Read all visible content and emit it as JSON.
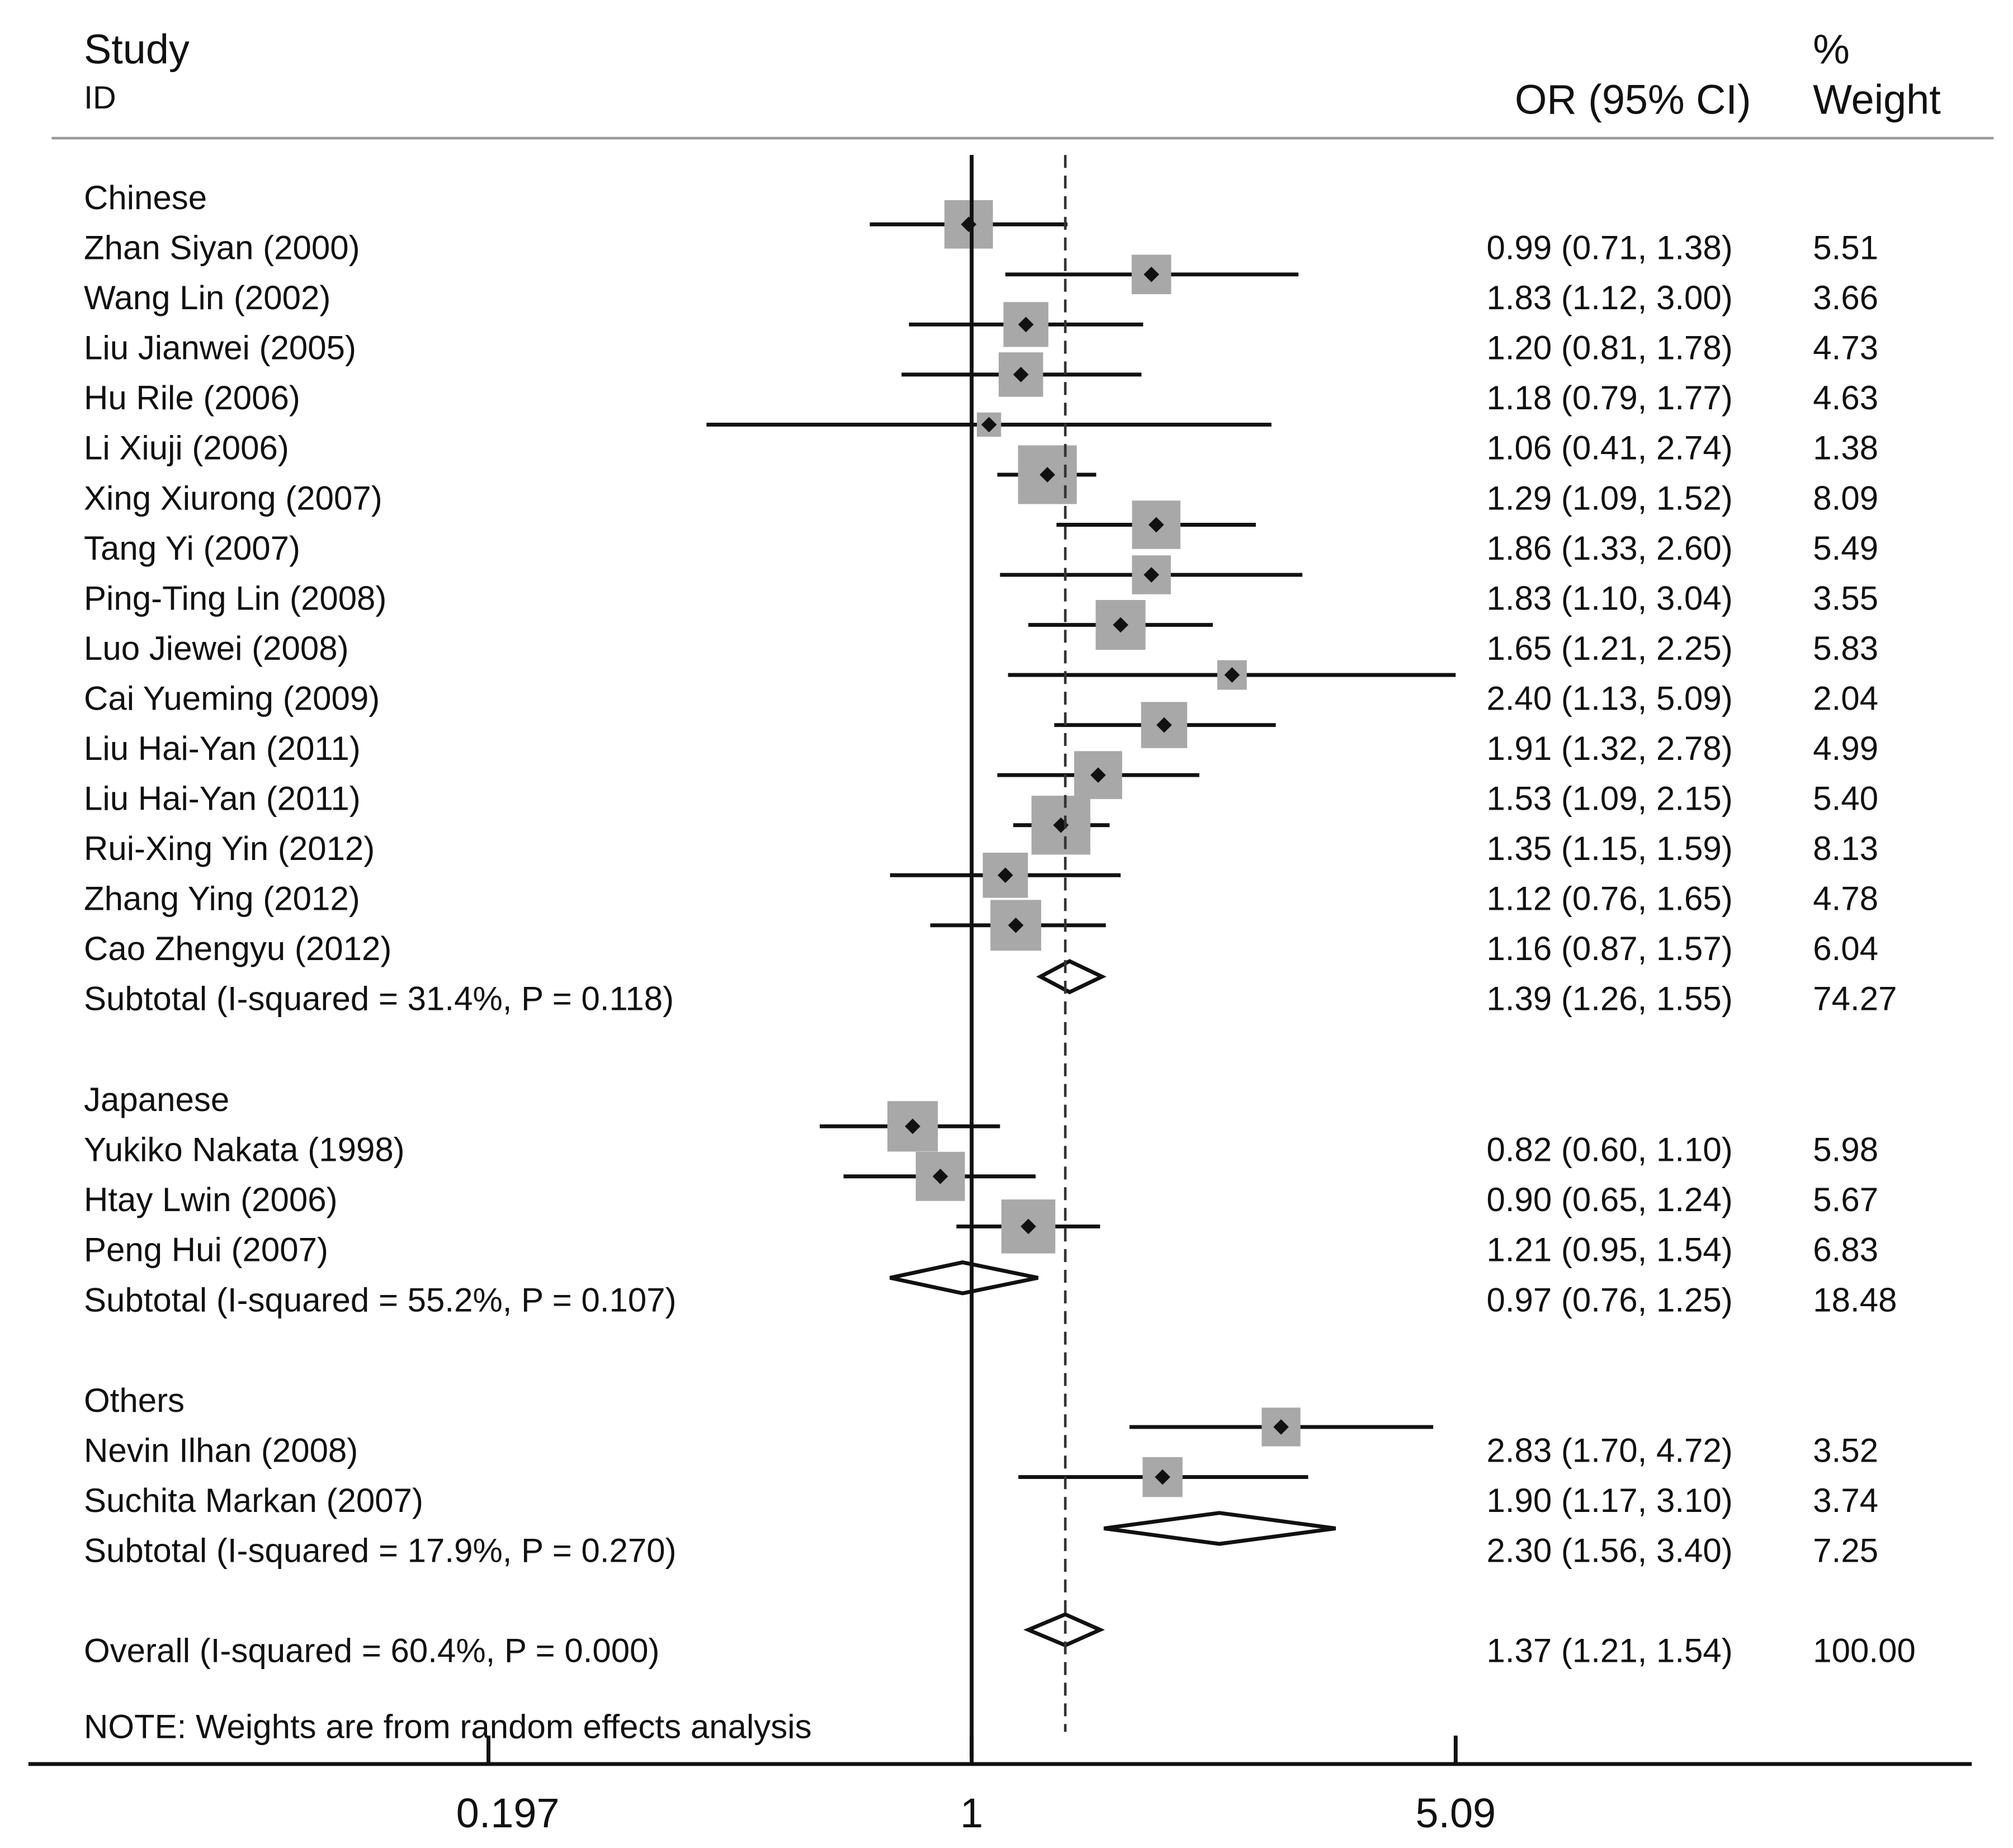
{
  "chart_data": {
    "type": "forest",
    "x_scale": "log",
    "null_value": 1,
    "overall_line_value": 1.37,
    "x_ticks": [
      0.197,
      1,
      5.09
    ],
    "x_tick_labels": [
      "0.197",
      "1",
      "5.09"
    ],
    "headers": {
      "study": "Study",
      "id": "ID",
      "or": "OR (95% CI)",
      "pct": "%",
      "weight": "Weight"
    },
    "marker_color": "#a8a8a8",
    "groups": [
      {
        "name": "Chinese",
        "studies": [
          {
            "label": "Zhan Siyan  (2000)",
            "or": 0.99,
            "lo": 0.71,
            "hi": 1.38,
            "ci_text": "0.99 (0.71, 1.38)",
            "weight": "5.51"
          },
          {
            "label": "Wang Lin (2002)",
            "or": 1.83,
            "lo": 1.12,
            "hi": 3.0,
            "ci_text": "1.83 (1.12, 3.00)",
            "weight": "3.66"
          },
          {
            "label": "Liu Jianwei (2005)",
            "or": 1.2,
            "lo": 0.81,
            "hi": 1.78,
            "ci_text": "1.20 (0.81, 1.78)",
            "weight": "4.73"
          },
          {
            "label": "Hu  Rile (2006)",
            "or": 1.18,
            "lo": 0.79,
            "hi": 1.77,
            "ci_text": "1.18 (0.79, 1.77)",
            "weight": "4.63"
          },
          {
            "label": "Li Xiuji (2006)",
            "or": 1.06,
            "lo": 0.41,
            "hi": 2.74,
            "ci_text": "1.06 (0.41, 2.74)",
            "weight": "1.38"
          },
          {
            "label": "Xing Xiurong  (2007)",
            "or": 1.29,
            "lo": 1.09,
            "hi": 1.52,
            "ci_text": "1.29 (1.09, 1.52)",
            "weight": "8.09"
          },
          {
            "label": "Tang Yi (2007)",
            "or": 1.86,
            "lo": 1.33,
            "hi": 2.6,
            "ci_text": "1.86 (1.33, 2.60)",
            "weight": "5.49"
          },
          {
            "label": "Ping-Ting Lin (2008)",
            "or": 1.83,
            "lo": 1.1,
            "hi": 3.04,
            "ci_text": "1.83 (1.10, 3.04)",
            "weight": "3.55"
          },
          {
            "label": "Luo Jiewei (2008)",
            "or": 1.65,
            "lo": 1.21,
            "hi": 2.25,
            "ci_text": "1.65 (1.21, 2.25)",
            "weight": "5.83"
          },
          {
            "label": "Cai Yueming  (2009)",
            "or": 2.4,
            "lo": 1.13,
            "hi": 5.09,
            "ci_text": "2.40 (1.13, 5.09)",
            "weight": "2.04"
          },
          {
            "label": "Liu Hai-Yan (2011)",
            "or": 1.91,
            "lo": 1.32,
            "hi": 2.78,
            "ci_text": "1.91 (1.32, 2.78)",
            "weight": "4.99"
          },
          {
            "label": "Liu Hai-Yan (2011)",
            "or": 1.53,
            "lo": 1.09,
            "hi": 2.15,
            "ci_text": "1.53 (1.09, 2.15)",
            "weight": "5.40"
          },
          {
            "label": "Rui-Xing Yin (2012)",
            "or": 1.35,
            "lo": 1.15,
            "hi": 1.59,
            "ci_text": "1.35 (1.15, 1.59)",
            "weight": "8.13"
          },
          {
            "label": "Zhang Ying (2012)",
            "or": 1.12,
            "lo": 0.76,
            "hi": 1.65,
            "ci_text": "1.12 (0.76, 1.65)",
            "weight": "4.78"
          },
          {
            "label": "Cao Zhengyu  (2012)",
            "or": 1.16,
            "lo": 0.87,
            "hi": 1.57,
            "ci_text": "1.16 (0.87, 1.57)",
            "weight": "6.04"
          }
        ],
        "subtotal": {
          "label": "Subtotal   (I-squared = 31.4%, P = 0.118)",
          "or": 1.39,
          "lo": 1.26,
          "hi": 1.55,
          "ci_text": "1.39 (1.26, 1.55)",
          "weight": "74.27"
        }
      },
      {
        "name": "Japanese",
        "studies": [
          {
            "label": "Yukiko Nakata (1998)",
            "or": 0.82,
            "lo": 0.6,
            "hi": 1.1,
            "ci_text": "0.82 (0.60, 1.10)",
            "weight": "5.98"
          },
          {
            "label": "Htay Lwin (2006)",
            "or": 0.9,
            "lo": 0.65,
            "hi": 1.24,
            "ci_text": "0.90 (0.65, 1.24)",
            "weight": "5.67"
          },
          {
            "label": "Peng  Hui (2007)",
            "or": 1.21,
            "lo": 0.95,
            "hi": 1.54,
            "ci_text": "1.21 (0.95, 1.54)",
            "weight": "6.83"
          }
        ],
        "subtotal": {
          "label": "Subtotal   (I-squared = 55.2%, P = 0.107)",
          "or": 0.97,
          "lo": 0.76,
          "hi": 1.25,
          "ci_text": "0.97 (0.76, 1.25)",
          "weight": "18.48"
        }
      },
      {
        "name": "Others",
        "studies": [
          {
            "label": "Nevin Ilhan (2008)",
            "or": 2.83,
            "lo": 1.7,
            "hi": 4.72,
            "ci_text": "2.83 (1.70, 4.72)",
            "weight": "3.52"
          },
          {
            "label": "Suchita Markan (2007)",
            "or": 1.9,
            "lo": 1.17,
            "hi": 3.1,
            "ci_text": "1.90 (1.17, 3.10)",
            "weight": "3.74"
          }
        ],
        "subtotal": {
          "label": "Subtotal   (I-squared = 17.9%, P = 0.270)",
          "or": 2.3,
          "lo": 1.56,
          "hi": 3.4,
          "ci_text": "2.30 (1.56, 3.40)",
          "weight": "7.25"
        }
      }
    ],
    "overall": {
      "label": "Overall   (I-squared = 60.4%, P = 0.000)",
      "or": 1.37,
      "lo": 1.21,
      "hi": 1.54,
      "ci_text": "1.37 (1.21, 1.54)",
      "weight": "100.00"
    },
    "note": "NOTE: Weights are from random effects analysis"
  }
}
